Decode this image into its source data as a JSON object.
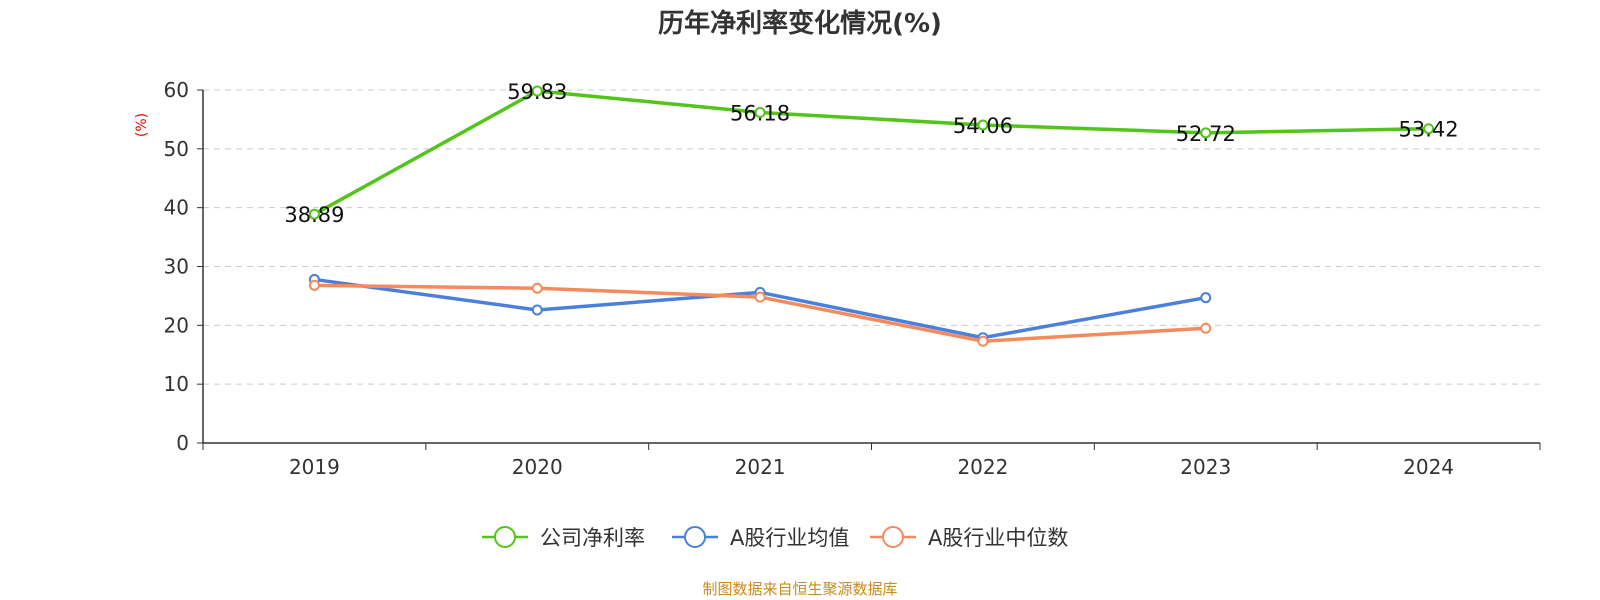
{
  "chart_data": {
    "type": "line",
    "title": "历年净利率变化情况(%)",
    "ylabel": "(%)",
    "categories": [
      "2019",
      "2020",
      "2021",
      "2022",
      "2023",
      "2024"
    ],
    "ylim": [
      0,
      60
    ],
    "yticks": [
      0,
      10,
      20,
      30,
      40,
      50,
      60
    ],
    "grid": true,
    "legend_position": "bottom",
    "series": [
      {
        "name": "公司净利率",
        "color": "#52c41a",
        "values": [
          38.89,
          59.83,
          56.18,
          54.06,
          52.72,
          53.42
        ],
        "labels": [
          "38.89",
          "59.83",
          "56.18",
          "54.06",
          "52.72",
          "53.42"
        ],
        "show_labels": true
      },
      {
        "name": "A股行业均值",
        "color": "#4a7fdc",
        "values": [
          27.8,
          22.6,
          25.6,
          17.9,
          24.7,
          null
        ],
        "show_labels": false
      },
      {
        "name": "A股行业中位数",
        "color": "#f58a5c",
        "values": [
          26.8,
          26.3,
          24.8,
          17.3,
          19.5,
          null
        ],
        "show_labels": false
      }
    ]
  },
  "source": "制图数据来自恒生聚源数据库"
}
